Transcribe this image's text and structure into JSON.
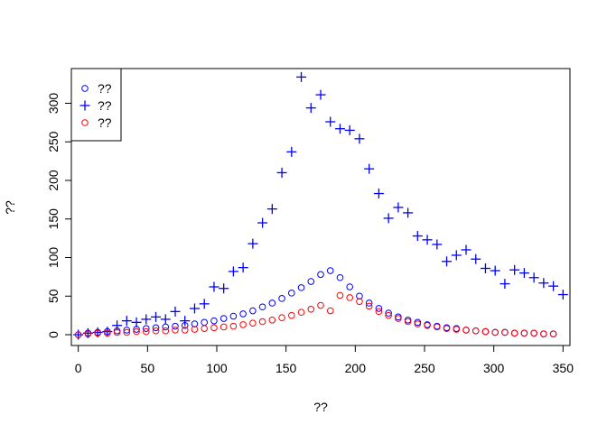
{
  "chart_data": {
    "type": "scatter",
    "title": "",
    "xlabel": "??",
    "ylabel": "??",
    "xlim": [
      -5,
      355
    ],
    "ylim": [
      -14,
      345
    ],
    "xticks": [
      0,
      50,
      100,
      150,
      200,
      250,
      300,
      350
    ],
    "yticks": [
      0,
      50,
      100,
      150,
      200,
      250,
      300
    ],
    "grid": false,
    "legend_position": "top-left",
    "series": [
      {
        "name": "??",
        "marker": "circle",
        "color": "#0000ff",
        "x": [
          0,
          7,
          14,
          21,
          28,
          35,
          42,
          49,
          56,
          63,
          70,
          77,
          84,
          91,
          98,
          105,
          112,
          119,
          126,
          133,
          140,
          147,
          154,
          161,
          168,
          175,
          182,
          189,
          196,
          203,
          210,
          217,
          224,
          231,
          238,
          245,
          252,
          259,
          266,
          273,
          280,
          287,
          294,
          301,
          308,
          315,
          322,
          329,
          336,
          343
        ],
        "y": [
          0,
          2,
          3,
          4,
          5,
          6,
          7,
          8,
          9,
          10,
          11,
          12,
          14,
          16,
          18,
          21,
          24,
          27,
          31,
          36,
          41,
          47,
          54,
          61,
          69,
          78,
          83,
          74,
          62,
          50,
          41,
          34,
          28,
          23,
          19,
          16,
          13,
          11,
          9,
          8,
          6,
          5,
          4,
          3,
          3,
          2,
          2,
          2,
          1,
          1
        ]
      },
      {
        "name": "??",
        "marker": "plus",
        "color": "#0000ff",
        "x": [
          0,
          7,
          14,
          21,
          28,
          35,
          42,
          49,
          56,
          63,
          70,
          77,
          84,
          91,
          98,
          105,
          112,
          119,
          126,
          133,
          140,
          147,
          154,
          161,
          168,
          175,
          182,
          189,
          196,
          203,
          210,
          217,
          224,
          231,
          238,
          245,
          252,
          259,
          266,
          273,
          280,
          287,
          294,
          301,
          308,
          315,
          322,
          329,
          336,
          343,
          350
        ],
        "y": [
          0,
          2,
          3,
          4,
          12,
          18,
          16,
          20,
          23,
          20,
          30,
          18,
          34,
          40,
          62,
          60,
          82,
          87,
          118,
          145,
          163,
          210,
          237,
          334,
          294,
          311,
          276,
          267,
          265,
          254,
          215,
          183,
          151,
          165,
          158,
          128,
          123,
          117,
          95,
          103,
          110,
          98,
          86,
          83,
          66,
          84,
          80,
          74,
          67,
          63,
          52
        ]
      },
      {
        "name": "??",
        "marker": "circle",
        "color": "#ff0000",
        "x": [
          0,
          7,
          14,
          21,
          28,
          35,
          42,
          49,
          56,
          63,
          70,
          77,
          84,
          91,
          98,
          105,
          112,
          119,
          126,
          133,
          140,
          147,
          154,
          161,
          168,
          175,
          182,
          189,
          196,
          203,
          210,
          217,
          224,
          231,
          238,
          245,
          252,
          259,
          266,
          273,
          280,
          287,
          294,
          301,
          308,
          315,
          322,
          329,
          336,
          343
        ],
        "y": [
          0,
          1,
          2,
          2,
          3,
          3,
          4,
          4,
          5,
          5,
          6,
          6,
          7,
          8,
          9,
          10,
          11,
          13,
          15,
          17,
          19,
          22,
          25,
          29,
          33,
          38,
          31,
          51,
          48,
          43,
          37,
          30,
          25,
          21,
          17,
          14,
          12,
          10,
          8,
          7,
          6,
          5,
          4,
          3,
          3,
          2,
          2,
          2,
          1,
          1
        ]
      }
    ]
  }
}
